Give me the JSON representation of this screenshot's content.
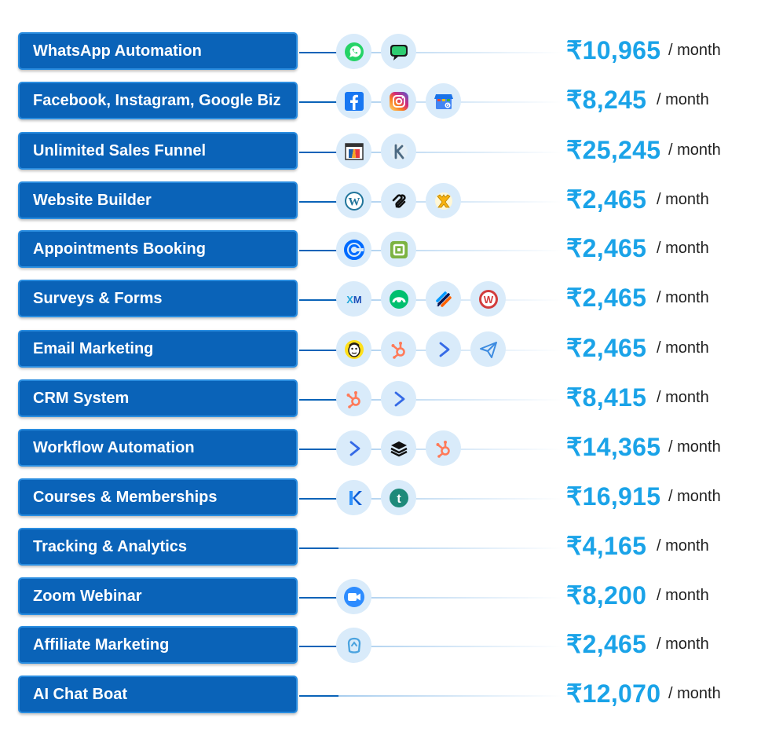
{
  "accent_color": "#0a63b8",
  "price_color": "#1aa3e8",
  "rows": [
    {
      "label": "WhatsApp Automation",
      "price": "₹10,965",
      "period": "/ month",
      "icons": [
        "whatsapp-icon",
        "chat-bubble-icon"
      ]
    },
    {
      "label": "Facebook, Instagram, Google Biz",
      "price": "₹8,245",
      "period": "/ month",
      "icons": [
        "facebook-icon",
        "instagram-icon",
        "google-business-icon"
      ]
    },
    {
      "label": "Unlimited Sales Funnel",
      "price": "₹25,245",
      "period": "/ month",
      "icons": [
        "clickfunnels-icon",
        "kartra-icon"
      ]
    },
    {
      "label": "Website Builder",
      "price": "₹2,465",
      "period": "/ month",
      "icons": [
        "wordpress-icon",
        "squarespace-icon",
        "wix-icon"
      ]
    },
    {
      "label": "Appointments Booking",
      "price": "₹2,465",
      "period": "/ month",
      "icons": [
        "calendly-icon",
        "square-appointments-icon"
      ]
    },
    {
      "label": "Surveys & Forms",
      "price": "₹2,465",
      "period": "/ month",
      "icons": [
        "qualtrics-xm-icon",
        "surveymonkey-icon",
        "jotform-icon",
        "wufoo-icon"
      ]
    },
    {
      "label": "Email Marketing",
      "price": "₹2,465",
      "period": "/ month",
      "icons": [
        "mailchimp-icon",
        "hubspot-icon",
        "activecampaign-icon",
        "paper-plane-icon"
      ]
    },
    {
      "label": "CRM System",
      "price": "₹8,415",
      "period": "/ month",
      "icons": [
        "hubspot-icon",
        "activecampaign-icon"
      ]
    },
    {
      "label": "Workflow Automation",
      "price": "₹14,365",
      "period": "/ month",
      "icons": [
        "activecampaign-icon",
        "stack-layers-icon",
        "hubspot-icon"
      ]
    },
    {
      "label": "Courses & Memberships",
      "price": "₹16,915",
      "period": "/ month",
      "icons": [
        "kajabi-icon",
        "teachable-icon"
      ]
    },
    {
      "label": "Tracking & Analytics",
      "price": "₹4,165",
      "period": "/ month",
      "icons": []
    },
    {
      "label": "Zoom Webinar",
      "price": "₹8,200",
      "period": "/ month",
      "icons": [
        "zoom-icon"
      ]
    },
    {
      "label": "Affiliate Marketing",
      "price": "₹2,465",
      "period": "/ month",
      "icons": [
        "affiliate-icon"
      ]
    },
    {
      "label": "AI Chat Boat",
      "price": "₹12,070",
      "period": "/ month",
      "icons": []
    }
  ]
}
